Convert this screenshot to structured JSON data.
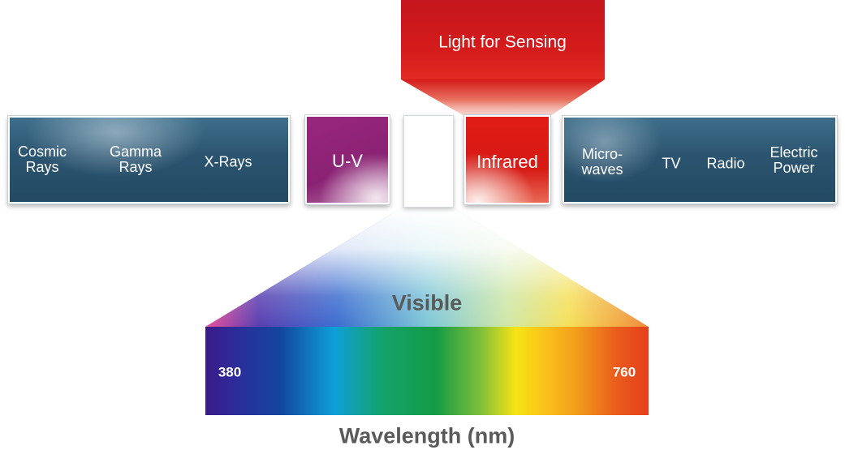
{
  "header": {
    "title": "Light for Sensing"
  },
  "bands": {
    "left": [
      {
        "line1": "Cosmic",
        "line2": "Rays"
      },
      {
        "line1": "Gamma",
        "line2": "Rays"
      },
      {
        "line1": "X-Rays",
        "line2": ""
      }
    ],
    "uv": "U-V",
    "infrared": "Infrared",
    "right": [
      {
        "line1": "Micro-",
        "line2": "waves"
      },
      {
        "line1": "TV",
        "line2": ""
      },
      {
        "line1": "Radio",
        "line2": ""
      },
      {
        "line1": "Electric",
        "line2": "Power"
      }
    ]
  },
  "visible": {
    "label": "Visible",
    "range_start": "380",
    "range_end": "760",
    "axis_label": "Wavelength (nm)"
  },
  "colors": {
    "band_blue": "#2b5470",
    "uv_purple": "#98267e",
    "infrared_red": "#e11c16",
    "sensing_red": "#c4161c",
    "text_gray": "#5a5a5a"
  }
}
